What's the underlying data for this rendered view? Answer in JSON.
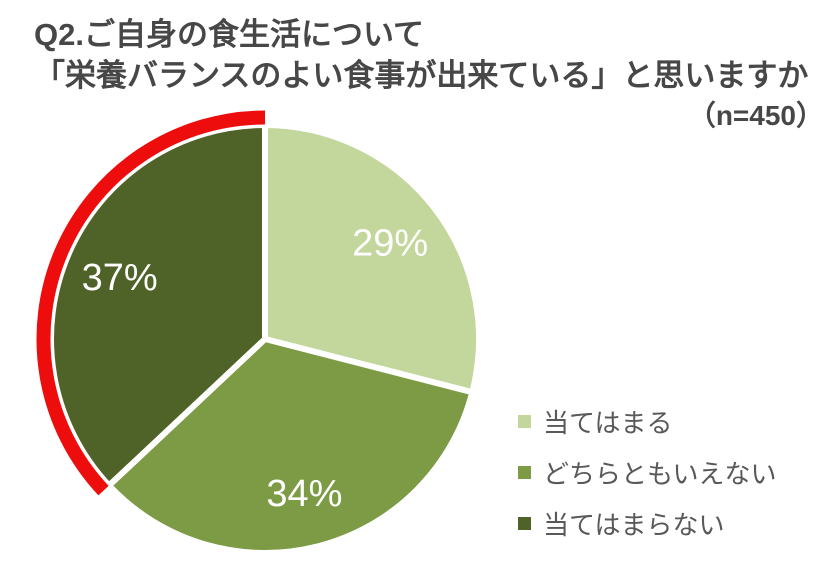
{
  "header": {
    "title_line1": "Q2.ご自身の食生活について",
    "title_line2": "「栄養バランスのよい食事が出来ている」と思いますか",
    "sample_size": "（n=450）"
  },
  "chart_data": {
    "type": "pie",
    "title": "Q2.ご自身の食生活について「栄養バランスのよい食事が出来ている」と思いますか",
    "sample_size": "（n=450）",
    "categories": [
      "当てはまる",
      "どちらともいえない",
      "当てはまらない"
    ],
    "values": [
      29,
      34,
      37
    ],
    "unit": "%",
    "colors": [
      "#c3d69b",
      "#7d9b45",
      "#4f6228"
    ],
    "slice_border_color": "#ffffff",
    "label_color": "#ffffff",
    "start_angle_deg": 0,
    "direction": "clockwise",
    "legend_position": "right",
    "highlight": {
      "category": "当てはまらない",
      "index": 2,
      "color": "#ee0d0d",
      "style": "outer-arc"
    }
  },
  "legend": {
    "items": [
      {
        "label": "当てはまる",
        "color": "#c3d69b"
      },
      {
        "label": "どちらともいえない",
        "color": "#7d9b45"
      },
      {
        "label": "当てはまらない",
        "color": "#4f6228"
      }
    ]
  }
}
